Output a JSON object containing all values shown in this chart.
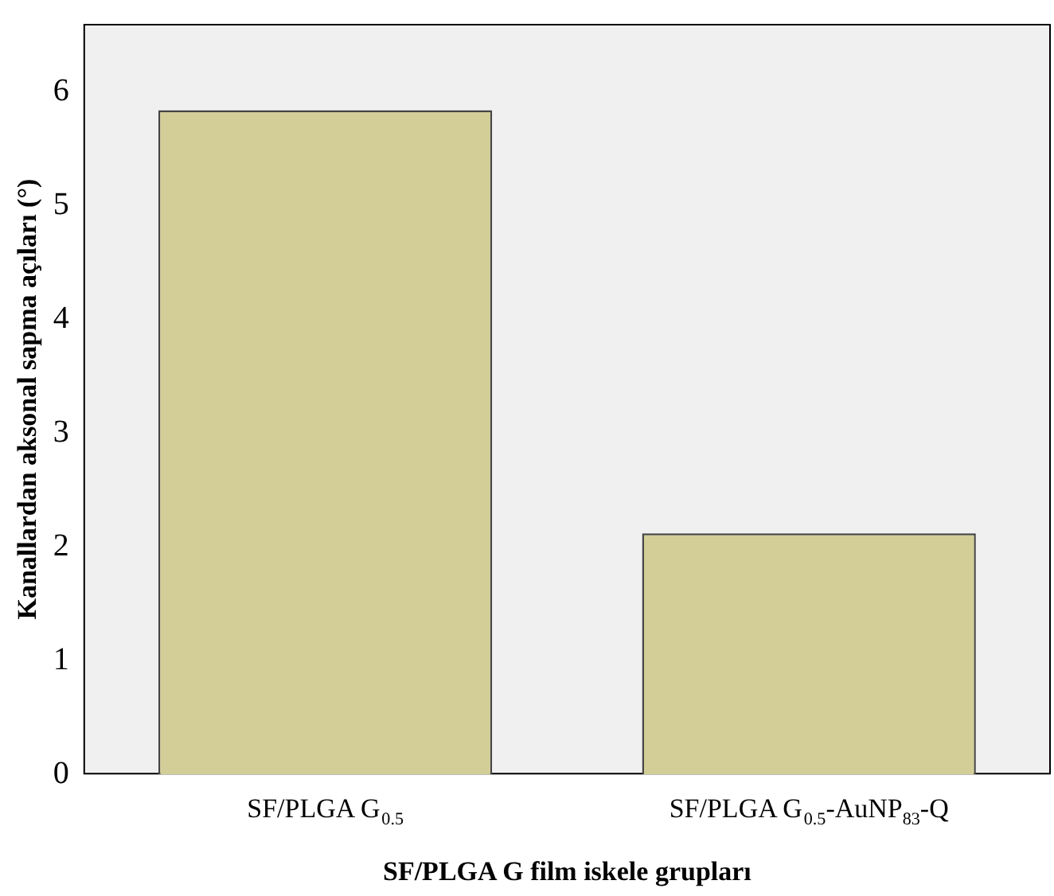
{
  "chart_data": {
    "type": "bar",
    "xlabel": "SF/PLGA G film iskele grupları",
    "ylabel": "Kanallardan aksonal sapma açıları (°)",
    "categories": [
      "SF/PLGA G$_{0.5}$",
      "SF/PLGA G$_{0.5}$-AuNP$_{83}$-Q"
    ],
    "values": [
      5.84,
      2.12
    ],
    "color": "#d3ce97",
    "ylim": [
      0,
      6.6
    ],
    "yticks": [
      0,
      1,
      2,
      3,
      4,
      5,
      6
    ],
    "grid": false,
    "legend": false
  }
}
